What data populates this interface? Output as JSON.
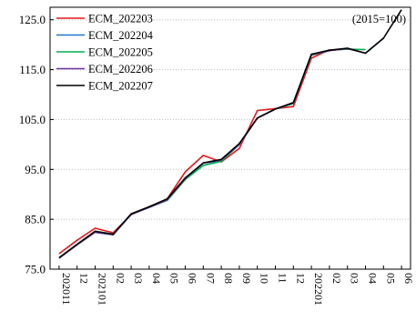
{
  "chart_data": {
    "type": "line",
    "title": "",
    "xlabel": "",
    "ylabel": "",
    "annotation": "(2015=100)",
    "ylim": [
      75.0,
      127.5
    ],
    "yticks": [
      "75.0",
      "85.0",
      "95.0",
      "105.0",
      "115.0",
      "125.0"
    ],
    "grid": "horizontal dotted",
    "legend_position": "top-left",
    "x": [
      "202011",
      "12",
      "202101",
      "02",
      "03",
      "04",
      "05",
      "06",
      "07",
      "08",
      "09",
      "10",
      "11",
      "12",
      "202201",
      "02",
      "03",
      "04",
      "05",
      "06"
    ],
    "series": [
      {
        "name": "ECM_202203",
        "color": "#e41a1c",
        "values": [
          78.1,
          80.8,
          83.2,
          82.3,
          85.9,
          87.5,
          89.1,
          94.5,
          97.8,
          96.5,
          99.2,
          106.8,
          107.2,
          107.6,
          117.3,
          119.0,
          null,
          null,
          null,
          null
        ]
      },
      {
        "name": "ECM_202204",
        "color": "#1f77d0",
        "values": [
          77.2,
          79.9,
          82.4,
          81.9,
          86.0,
          87.4,
          88.8,
          93.0,
          95.8,
          96.8,
          100.0,
          105.3,
          107.1,
          108.2,
          117.9,
          118.8,
          119.3,
          null,
          null,
          null
        ]
      },
      {
        "name": "ECM_202205",
        "color": "#00b050",
        "values": [
          77.2,
          79.9,
          82.4,
          81.9,
          86.0,
          87.4,
          88.8,
          93.0,
          95.8,
          96.6,
          100.0,
          105.3,
          107.1,
          108.2,
          117.9,
          118.9,
          119.1,
          119.0,
          null,
          null
        ]
      },
      {
        "name": "ECM_202206",
        "color": "#7030a0",
        "values": [
          77.2,
          79.9,
          82.4,
          81.9,
          86.0,
          87.4,
          88.9,
          93.2,
          96.3,
          96.9,
          100.0,
          105.3,
          107.1,
          108.3,
          118.0,
          118.8,
          119.2,
          118.3,
          121.3,
          null
        ]
      },
      {
        "name": "ECM_202207",
        "color": "#000000",
        "values": [
          77.3,
          80.0,
          82.6,
          82.0,
          86.1,
          87.5,
          89.1,
          93.3,
          96.3,
          97.0,
          100.2,
          105.3,
          107.1,
          108.4,
          118.1,
          118.9,
          119.3,
          118.3,
          121.3,
          127.0
        ]
      }
    ]
  }
}
